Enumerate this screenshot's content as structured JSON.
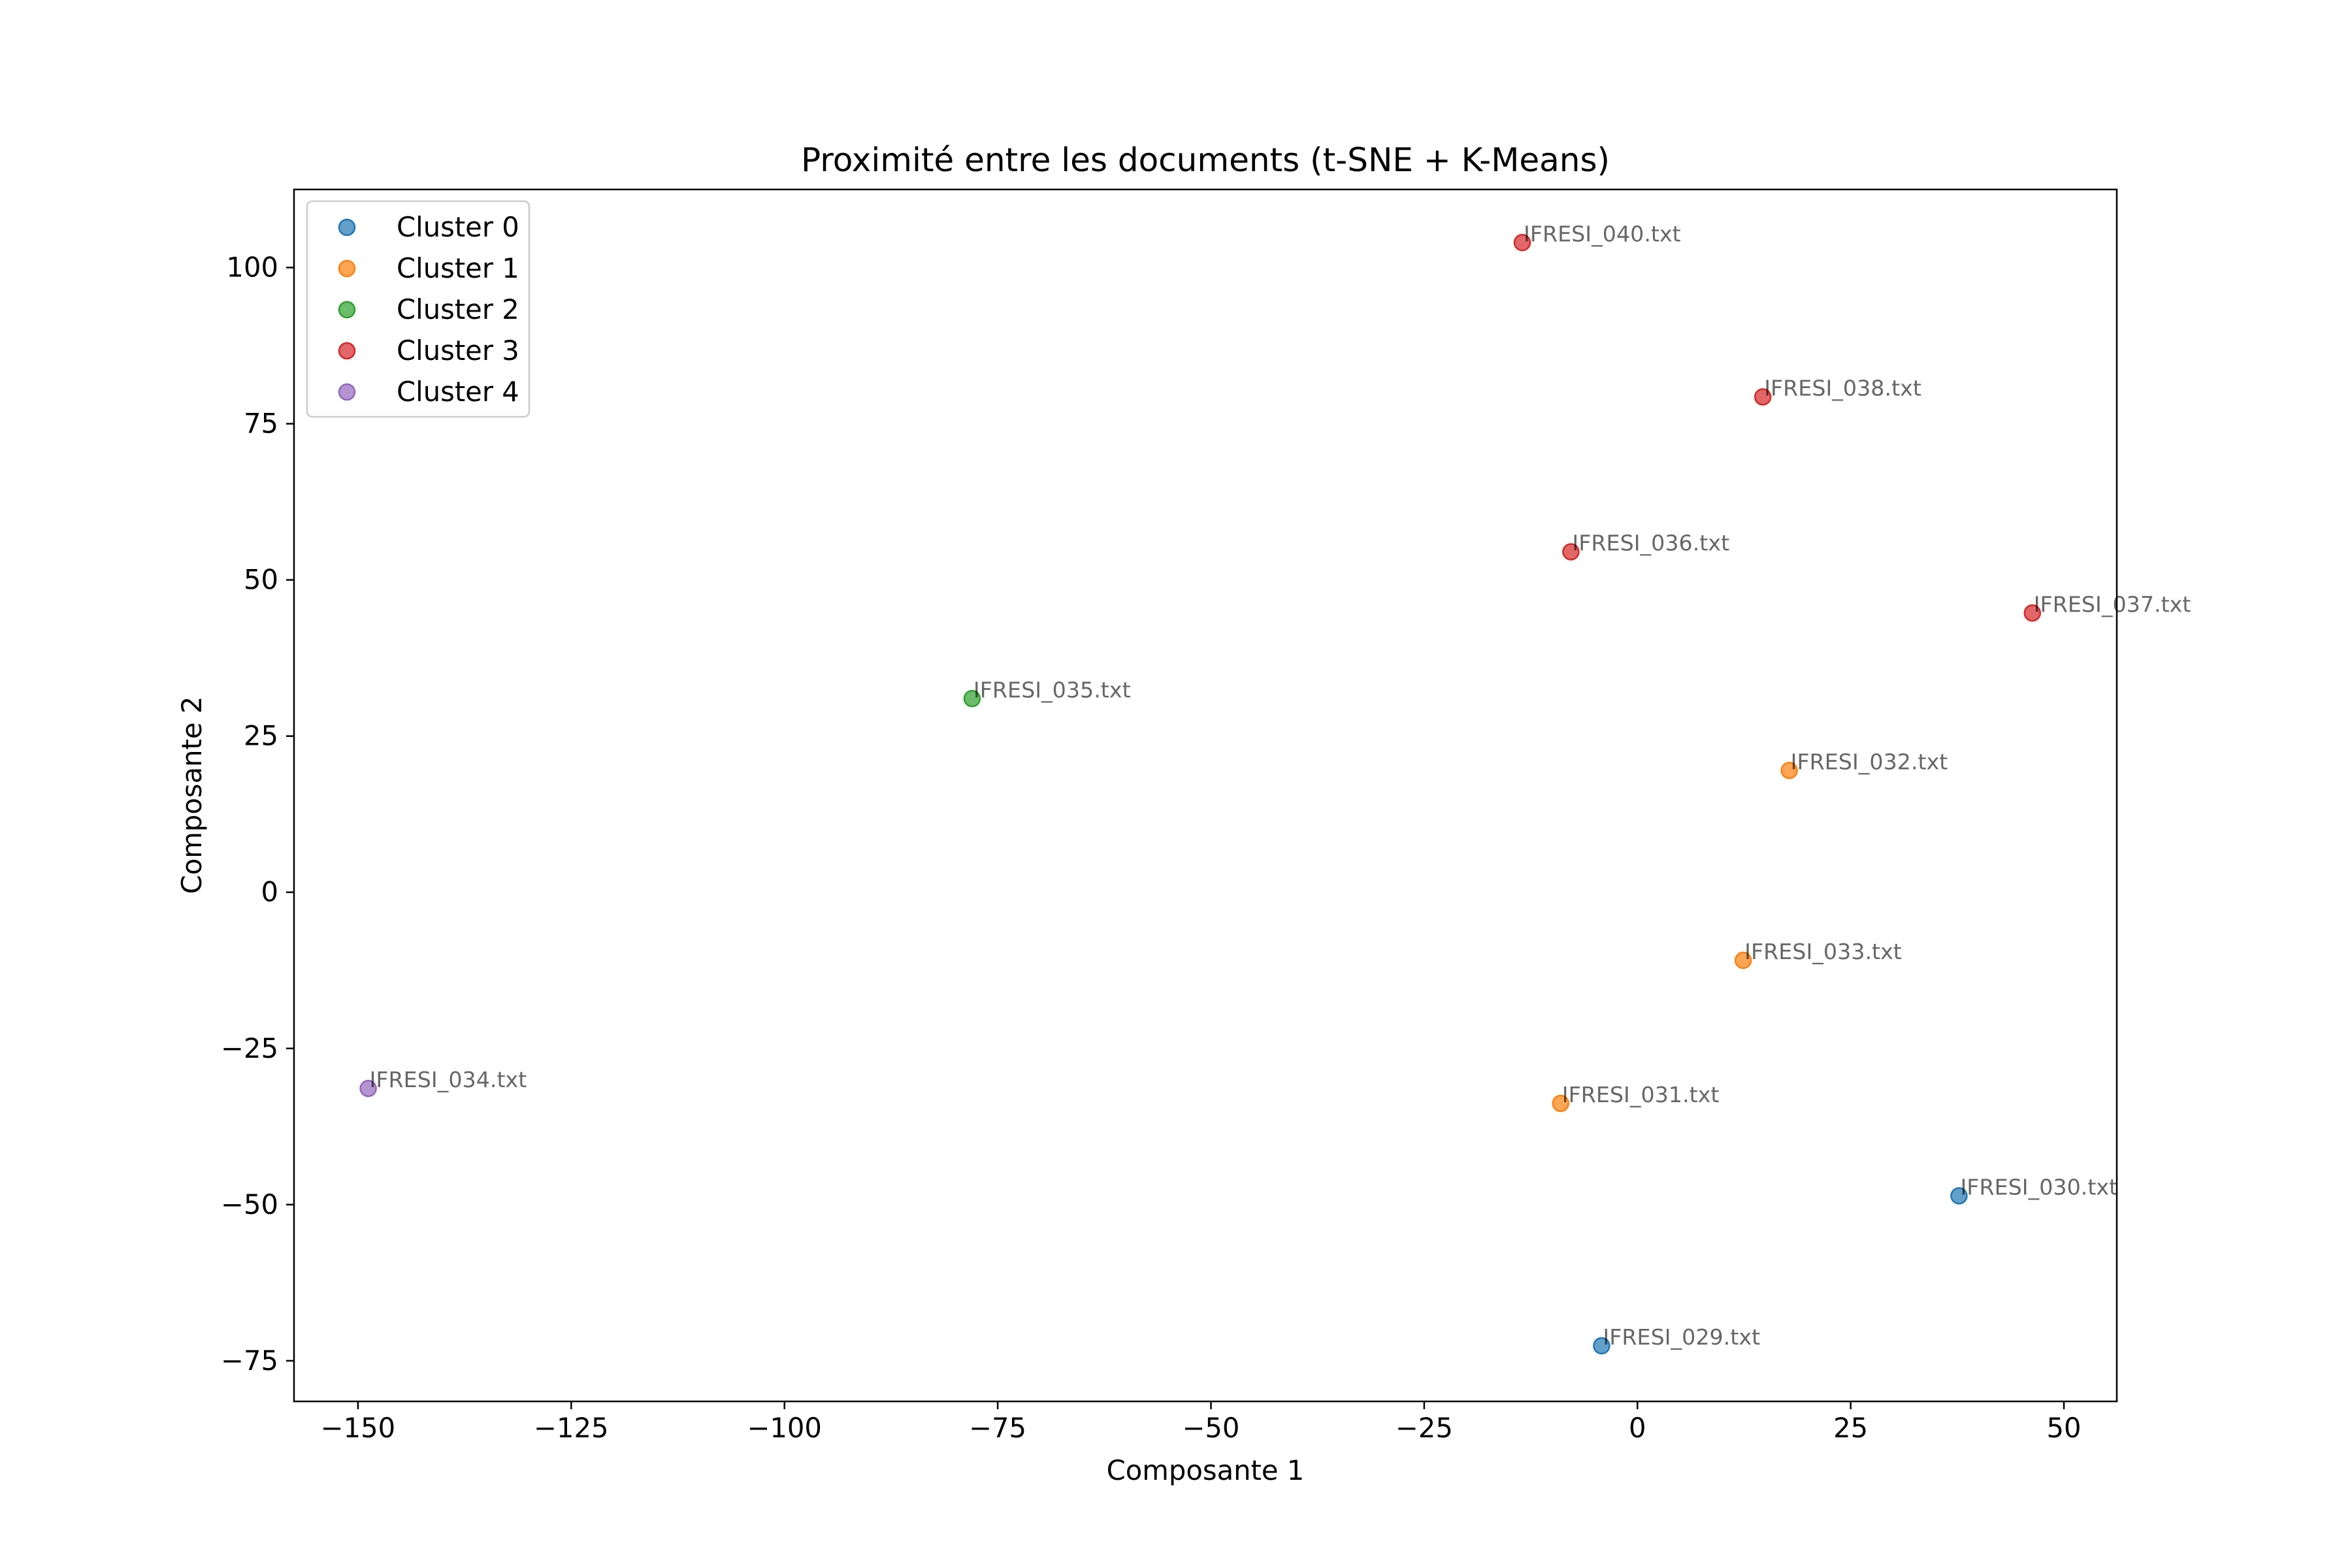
{
  "chart_data": {
    "type": "scatter",
    "title": "Proximité entre les documents (t-SNE + K-Means)",
    "xlabel": "Composante 1",
    "ylabel": "Composante 2",
    "xlim": [
      -157.5,
      56.2
    ],
    "ylim": [
      -81.5,
      112.5
    ],
    "xticks": [
      -150,
      -125,
      -100,
      -75,
      -50,
      -25,
      0,
      25,
      50
    ],
    "yticks": [
      -75,
      -50,
      -25,
      0,
      25,
      50,
      75,
      100
    ],
    "xtick_labels": [
      "−150",
      "−125",
      "−100",
      "−75",
      "−50",
      "−25",
      "0",
      "25",
      "50"
    ],
    "ytick_labels": [
      "−75",
      "−50",
      "−25",
      "0",
      "25",
      "50",
      "75",
      "100"
    ],
    "grid": false,
    "legend_position": "top-left",
    "series": [
      {
        "name": "Cluster 0",
        "color": "#1f77b4",
        "points": [
          {
            "x": 37.7,
            "y": -48.6,
            "label": "IFRESI_030.txt"
          },
          {
            "x": -4.2,
            "y": -72.6,
            "label": "IFRESI_029.txt"
          }
        ]
      },
      {
        "name": "Cluster 1",
        "color": "#ff7f0e",
        "points": [
          {
            "x": 17.8,
            "y": 19.5,
            "label": "IFRESI_032.txt"
          },
          {
            "x": 12.4,
            "y": -10.9,
            "label": "IFRESI_033.txt"
          },
          {
            "x": -9.0,
            "y": -33.8,
            "label": "IFRESI_031.txt"
          }
        ]
      },
      {
        "name": "Cluster 2",
        "color": "#2ca02c",
        "points": [
          {
            "x": -78.0,
            "y": 31.0,
            "label": "IFRESI_035.txt"
          }
        ]
      },
      {
        "name": "Cluster 3",
        "color": "#d62728",
        "points": [
          {
            "x": -13.5,
            "y": 104.0,
            "label": "IFRESI_040.txt"
          },
          {
            "x": 14.7,
            "y": 79.3,
            "label": "IFRESI_038.txt"
          },
          {
            "x": -7.8,
            "y": 54.5,
            "label": "IFRESI_036.txt"
          },
          {
            "x": 46.3,
            "y": 44.7,
            "label": "IFRESI_037.txt"
          }
        ]
      },
      {
        "name": "Cluster 4",
        "color": "#9467bd",
        "points": [
          {
            "x": -148.8,
            "y": -31.4,
            "label": "IFRESI_034.txt"
          }
        ]
      }
    ]
  }
}
